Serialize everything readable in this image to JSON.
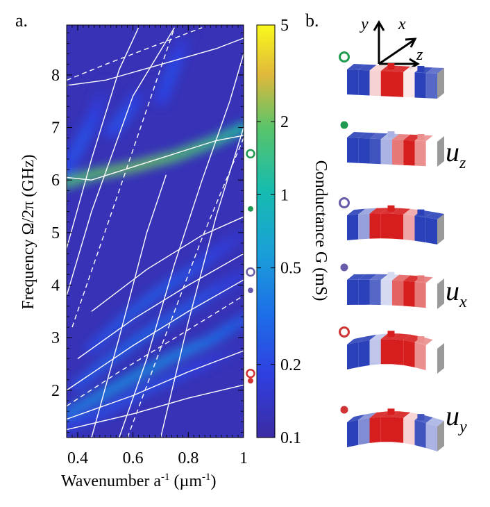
{
  "chart_data": {
    "type": "heatmap",
    "panel_a_label": "a.",
    "panel_b_label": "b.",
    "xlabel": "Wavenumber a",
    "xlabel_sup": "-1",
    "xlabel_unit": " (µm",
    "xlabel_unit_sup": "-1",
    "xlabel_close": ")",
    "ylabel": "Frequency Ω/2π (GHz)",
    "xlim": [
      0.36,
      1.0
    ],
    "ylim": [
      1.1,
      8.95
    ],
    "x_ticks": [
      "0.4",
      "0.6",
      "0.8",
      "1"
    ],
    "x_tick_values": [
      0.4,
      0.6,
      0.8,
      1.0
    ],
    "y_ticks": [
      "2",
      "3",
      "4",
      "5",
      "6",
      "7",
      "8"
    ],
    "y_tick_values": [
      2,
      3,
      4,
      5,
      6,
      7,
      8
    ],
    "colorbar": {
      "label": "Conductance G (mS)",
      "scale": "log",
      "range": [
        0.1,
        5
      ],
      "ticks": [
        "5",
        "2",
        "1",
        "0.5",
        "0.2",
        "0.1"
      ],
      "tick_values": [
        5,
        2,
        1,
        0.5,
        0.2,
        0.1
      ],
      "colormap": "parula"
    },
    "background_conductance": 0.12,
    "resonance_branches": [
      {
        "x": [
          0.36,
          0.5,
          0.62,
          0.75,
          0.88,
          1.0
        ],
        "y": [
          1.3,
          1.6,
          1.95,
          2.25,
          2.55,
          2.85
        ],
        "peak": 0.22
      },
      {
        "x": [
          0.36,
          0.5,
          0.62,
          0.75,
          0.88,
          1.0
        ],
        "y": [
          1.55,
          1.95,
          2.3,
          2.65,
          2.95,
          3.35
        ],
        "peak": 0.45
      },
      {
        "x": [
          0.4,
          0.52,
          0.64,
          0.76,
          0.88,
          1.0
        ],
        "y": [
          2.1,
          2.6,
          3.05,
          3.45,
          3.85,
          4.2
        ],
        "peak": 0.28
      },
      {
        "x": [
          0.45,
          0.58,
          0.7,
          0.82,
          0.92,
          1.0
        ],
        "y": [
          2.8,
          3.4,
          3.9,
          4.3,
          4.7,
          5.0
        ],
        "peak": 0.25
      },
      {
        "x": [
          0.36,
          0.45,
          0.6,
          0.75,
          0.9,
          1.0
        ],
        "y": [
          5.95,
          6.1,
          6.25,
          6.45,
          6.75,
          7.0
        ],
        "peak": 2.0
      },
      {
        "x": [
          0.36,
          0.45,
          0.5
        ],
        "y": [
          6.2,
          7.1,
          7.8
        ],
        "peak": 0.22
      },
      {
        "x": [
          0.52,
          0.58,
          0.64
        ],
        "y": [
          6.9,
          7.3,
          7.8
        ],
        "peak": 0.22
      },
      {
        "x": [
          0.7,
          0.75,
          0.8
        ],
        "y": [
          7.5,
          8.2,
          8.9
        ],
        "peak": 0.2
      }
    ],
    "dispersion_solid": [
      {
        "x": [
          0.36,
          0.6,
          0.8,
          1.0
        ],
        "y": [
          1.25,
          1.55,
          1.85,
          2.1
        ]
      },
      {
        "x": [
          0.36,
          0.6,
          0.8,
          1.0
        ],
        "y": [
          1.45,
          1.9,
          2.35,
          2.75
        ]
      },
      {
        "x": [
          0.36,
          0.6,
          0.8,
          1.0
        ],
        "y": [
          2.0,
          2.85,
          3.5,
          4.1
        ]
      },
      {
        "x": [
          0.4,
          0.6,
          0.8,
          1.0
        ],
        "y": [
          2.6,
          3.35,
          4.0,
          4.6
        ]
      },
      {
        "x": [
          0.45,
          0.65,
          0.85,
          1.0
        ],
        "y": [
          3.5,
          4.3,
          4.95,
          5.3
        ]
      },
      {
        "x": [
          0.36,
          0.45,
          0.6,
          0.75
        ],
        "y": [
          3.8,
          5.4,
          7.6,
          8.9
        ]
      },
      {
        "x": [
          0.36,
          0.45,
          0.55,
          0.62
        ],
        "y": [
          4.7,
          6.4,
          8.1,
          8.9
        ]
      },
      {
        "x": [
          0.45,
          0.55,
          0.65,
          0.72
        ],
        "y": [
          1.1,
          3.0,
          5.0,
          6.1
        ]
      },
      {
        "x": [
          0.55,
          0.65,
          0.75,
          0.85,
          0.95,
          1.0
        ],
        "y": [
          1.1,
          2.6,
          4.4,
          6.0,
          7.5,
          8.4
        ]
      },
      {
        "x": [
          0.7,
          0.8,
          0.9,
          1.0
        ],
        "y": [
          1.1,
          3.3,
          5.3,
          7.0
        ]
      },
      {
        "x": [
          0.36,
          0.45,
          0.6,
          0.75,
          0.9,
          1.0
        ],
        "y": [
          6.05,
          6.0,
          6.25,
          6.5,
          6.75,
          6.85
        ]
      },
      {
        "x": [
          0.36,
          0.5,
          0.7,
          0.9,
          1.0
        ],
        "y": [
          7.8,
          7.9,
          8.2,
          8.5,
          8.7
        ]
      }
    ],
    "dispersion_dashed": [
      {
        "x": [
          0.36,
          0.55,
          0.8,
          1.0
        ],
        "y": [
          1.7,
          2.35,
          3.15,
          3.8
        ]
      },
      {
        "x": [
          0.38,
          0.55,
          0.75
        ],
        "y": [
          3.2,
          5.8,
          8.9
        ]
      },
      {
        "x": [
          0.36,
          0.5,
          0.7,
          0.85
        ],
        "y": [
          7.9,
          8.2,
          8.6,
          8.9
        ]
      },
      {
        "x": [
          0.58,
          0.7,
          0.85,
          1.0
        ],
        "y": [
          1.1,
          2.8,
          4.9,
          6.8
        ]
      }
    ],
    "markers": [
      {
        "y": 6.5,
        "style": "open",
        "color": "#1f9a50"
      },
      {
        "y": 5.45,
        "style": "filled",
        "color": "#1f9a50"
      },
      {
        "y": 4.25,
        "style": "open",
        "color": "#6a5aaa"
      },
      {
        "y": 3.9,
        "style": "filled",
        "color": "#6a5aaa"
      },
      {
        "y": 2.32,
        "style": "open",
        "color": "#d03434"
      },
      {
        "y": 2.18,
        "style": "filled",
        "color": "#d03434"
      }
    ]
  },
  "panel_b": {
    "axes": {
      "y": "y",
      "x": "x",
      "z": "z"
    },
    "mode_labels": [
      {
        "base": "u",
        "sub": "z"
      },
      {
        "base": "u",
        "sub": "x"
      },
      {
        "base": "u",
        "sub": "y"
      }
    ],
    "beams": [
      {
        "marker": "open",
        "color": "#1f9a50",
        "bend": 0.0,
        "pattern": [
          -1,
          -1,
          0.2,
          1,
          1,
          0.1,
          -1,
          -0.8
        ]
      },
      {
        "marker": "filled",
        "color": "#1f9a50",
        "bend": 0.0,
        "pattern": [
          -1,
          -1,
          -0.9,
          -0.4,
          0.6,
          1,
          0.5,
          0
        ]
      },
      {
        "marker": "open",
        "color": "#6a5aaa",
        "bend": 0.45,
        "pattern": [
          -1,
          -0.5,
          1,
          1,
          1,
          0.4,
          -1,
          -1
        ]
      },
      {
        "marker": "filled",
        "color": "#6a5aaa",
        "bend": 0.2,
        "pattern": [
          -1,
          -1,
          -0.8,
          -0.2,
          0.7,
          1,
          0.6,
          0
        ]
      },
      {
        "marker": "open",
        "color": "#d03434",
        "bend": 0.9,
        "pattern": [
          -1,
          -1,
          -0.3,
          1,
          1,
          1,
          0.5,
          0
        ]
      },
      {
        "marker": "filled",
        "color": "#d03434",
        "bend": 0.9,
        "pattern": [
          -1,
          -0.6,
          1,
          1,
          1,
          0.2,
          -0.9,
          -0.4
        ]
      }
    ]
  }
}
